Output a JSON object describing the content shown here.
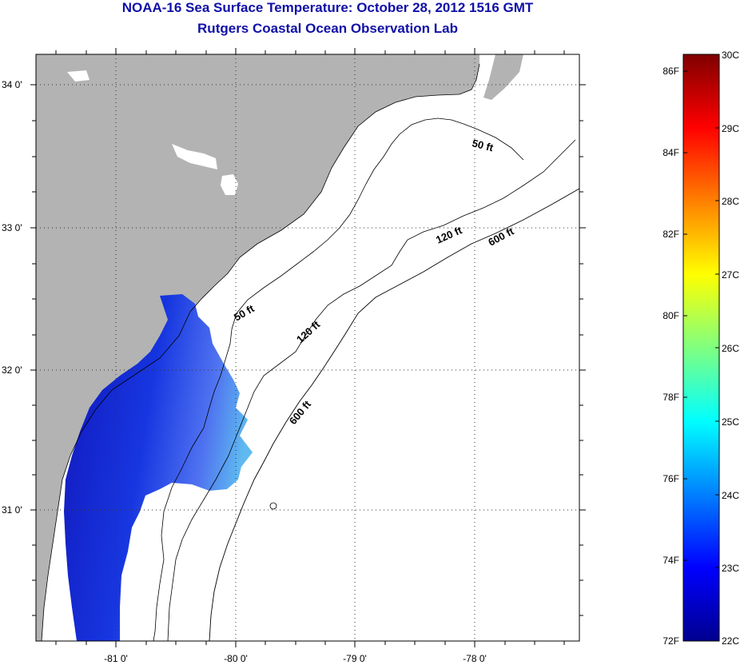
{
  "title": {
    "line1": "NOAA-16 Sea Surface Temperature:  October 28, 2012 1516 GMT",
    "line2": "Rutgers Coastal Ocean Observation Lab"
  },
  "map": {
    "lat_ticks": [
      "34 0'",
      "33 0'",
      "32 0'",
      "31 0'"
    ],
    "lon_ticks": [
      "-81 0'",
      "-80 0'",
      "-79 0'",
      "-78 0'"
    ],
    "contours": [
      "50 ft",
      "120 ft",
      "600 ft",
      "50 ft",
      "120 ft",
      "600 ft"
    ],
    "colors": {
      "land": "#b3b3b3",
      "ocean_nodata": "#ffffff",
      "title": "#1010a8"
    }
  },
  "colorbar": {
    "fahrenheit": [
      "86F",
      "84F",
      "82F",
      "80F",
      "78F",
      "76F",
      "74F",
      "72F"
    ],
    "celsius": [
      "30C",
      "29C",
      "28C",
      "27C",
      "26C",
      "25C",
      "24C",
      "23C",
      "22C"
    ],
    "min_c": 22,
    "max_c": 30,
    "colormap": "jet"
  }
}
